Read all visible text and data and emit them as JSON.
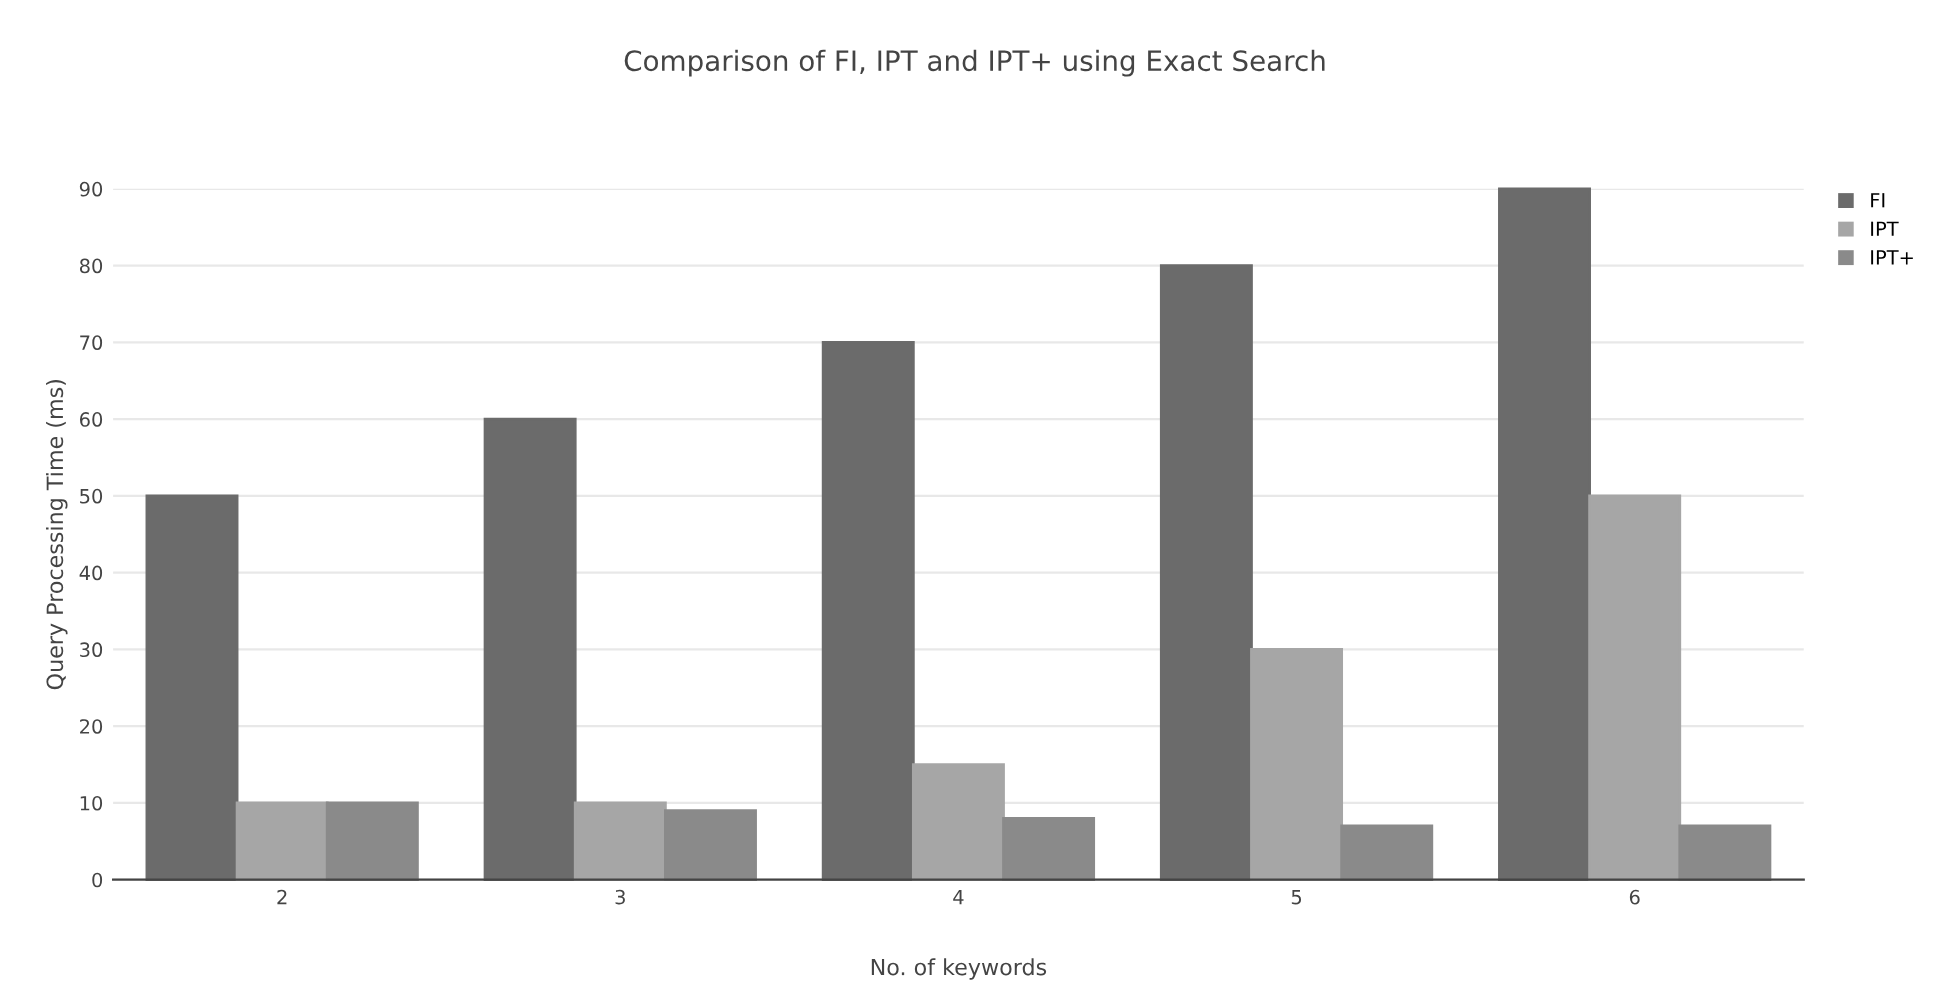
{
  "chart_data": {
    "type": "bar",
    "title": "Comparison of FI, IPT and IPT+ using Exact Search",
    "xlabel": "No. of keywords",
    "ylabel": "Query Processing Time (ms)",
    "categories": [
      "2",
      "3",
      "4",
      "5",
      "6"
    ],
    "series": [
      {
        "name": "FI",
        "color": "#6b6b6b",
        "values": [
          50,
          60,
          70,
          80,
          90
        ]
      },
      {
        "name": "IPT",
        "color": "#a6a6a6",
        "values": [
          10,
          10,
          15,
          30,
          50
        ]
      },
      {
        "name": "IPT+",
        "color": "#8a8a8a",
        "values": [
          10,
          9,
          8,
          7,
          7
        ]
      }
    ],
    "ylim": [
      0,
      90
    ],
    "yticks": [
      0,
      10,
      20,
      30,
      40,
      50,
      60,
      70,
      80,
      90
    ],
    "grid": "y",
    "legend": "top right"
  }
}
